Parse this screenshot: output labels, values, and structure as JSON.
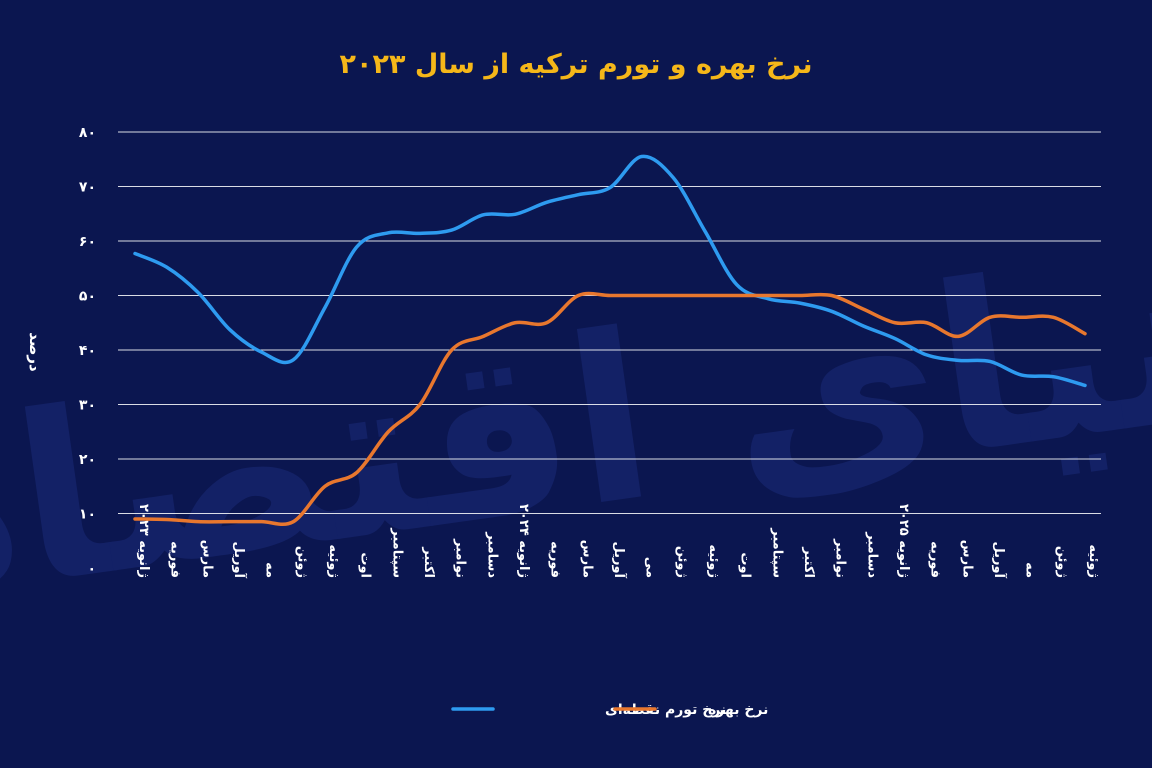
{
  "chart_data": {
    "type": "line",
    "title": "نرخ بهره و تورم ترکیه از سال ۲۰۲۳",
    "ylabel": "درصد",
    "xlabel": "",
    "ylim": [
      0,
      80
    ],
    "yticks": [
      "۰",
      "۱۰",
      "۲۰",
      "۳۰",
      "۴۰",
      "۵۰",
      "۶۰",
      "۷۰",
      "۸۰"
    ],
    "grid": true,
    "legend_position": "bottom",
    "categories": [
      "ژانویه ۲۰۲۳",
      "فوریه",
      "مارس",
      "آوریل",
      "مه",
      "ژوئن",
      "ژوئیه",
      "اوت",
      "سپتامبر",
      "اکتبر",
      "نوامبر",
      "دسامبر",
      "ژانویه ۲۰۲۴",
      "فوریه",
      "مارس",
      "آوریل",
      "می",
      "ژوئن",
      "ژوئیه",
      "اوت",
      "سپتامبر",
      "اکتبر",
      "نوامبر",
      "دسامبر",
      "ژانویه ۲۰۲۵",
      "فوریه",
      "مارس",
      "آوریل",
      "مه",
      "ژوئن",
      "ژوئیه"
    ],
    "series": [
      {
        "name": "نرخ تورم نقطه‌ای",
        "color": "#2e9bf0",
        "values": [
          57.7,
          55.2,
          50.5,
          43.7,
          39.6,
          38.2,
          47.8,
          58.9,
          61.5,
          61.4,
          62.0,
          64.8,
          64.9,
          67.1,
          68.5,
          69.8,
          75.5,
          71.6,
          61.8,
          52.0,
          49.4,
          48.6,
          47.1,
          44.4,
          42.1,
          39.1,
          38.1,
          37.9,
          35.4,
          35.1,
          33.5
        ]
      },
      {
        "name": "نرخ بهره",
        "color": "#e8772e",
        "values": [
          9.0,
          8.9,
          8.5,
          8.5,
          8.5,
          8.5,
          15.0,
          17.5,
          25.0,
          30.0,
          40.0,
          42.5,
          45.0,
          45.0,
          50.0,
          50.0,
          50.0,
          50.0,
          50.0,
          50.0,
          50.0,
          50.0,
          50.0,
          47.5,
          45.0,
          45.0,
          42.5,
          46.0,
          46.0,
          46.0,
          43.0
        ]
      }
    ]
  },
  "watermark": "دنیای اقتصاد"
}
